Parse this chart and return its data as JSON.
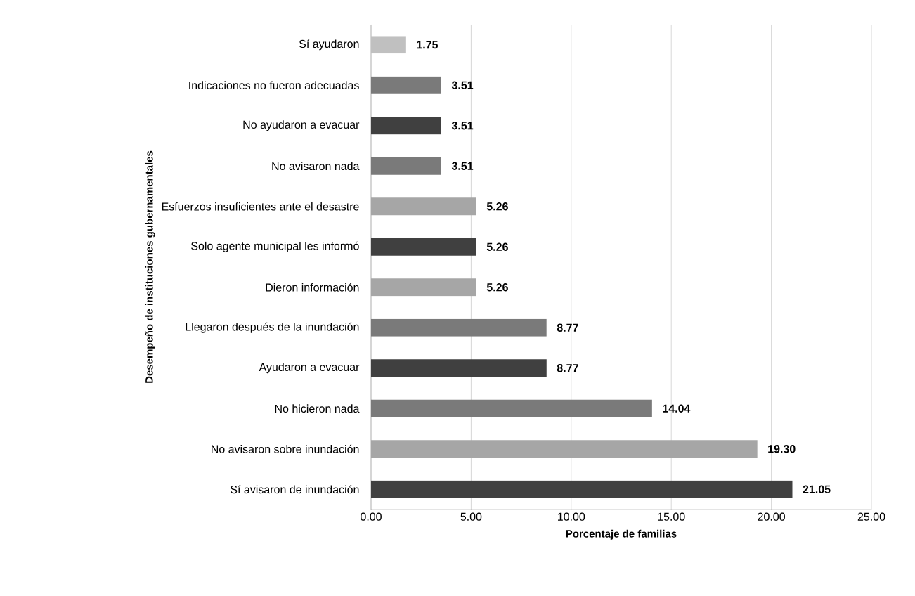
{
  "chart_data": {
    "type": "bar",
    "orientation": "horizontal",
    "xlabel": "Porcentaje de familias",
    "ylabel": "Desempeño de instituciones gubernamentales",
    "categories": [
      "Sí ayudaron",
      "Indicaciones no fueron adecuadas",
      "No ayudaron a evacuar",
      "No avisaron nada",
      "Esfuerzos insuficientes ante el desastre",
      "Solo agente municipal les informó",
      "Dieron información",
      "Llegaron después de la inundación",
      "Ayudaron a evacuar",
      "No hicieron nada",
      "No avisaron sobre inundación",
      "Sí avisaron de inundación"
    ],
    "values": [
      1.75,
      3.51,
      3.51,
      3.51,
      5.26,
      5.26,
      5.26,
      8.77,
      8.77,
      14.04,
      19.3,
      21.05
    ],
    "value_labels": [
      "1.75",
      "3.51",
      "3.51",
      "3.51",
      "5.26",
      "5.26",
      "5.26",
      "8.77",
      "8.77",
      "14.04",
      "19.30",
      "21.05"
    ],
    "colors": [
      "#c0c0c0",
      "#7a7a7a",
      "#404040",
      "#7a7a7a",
      "#a6a6a6",
      "#404040",
      "#a6a6a6",
      "#7a7a7a",
      "#404040",
      "#7a7a7a",
      "#a6a6a6",
      "#404040"
    ],
    "xlim": [
      0,
      25
    ],
    "xticks": [
      {
        "value": 0,
        "label": "0.00"
      },
      {
        "value": 5,
        "label": "5.00"
      },
      {
        "value": 10,
        "label": "10.00"
      },
      {
        "value": 15,
        "label": "15.00"
      },
      {
        "value": 20,
        "label": "20.00"
      },
      {
        "value": 25,
        "label": "25.00"
      }
    ],
    "grid": "x"
  }
}
